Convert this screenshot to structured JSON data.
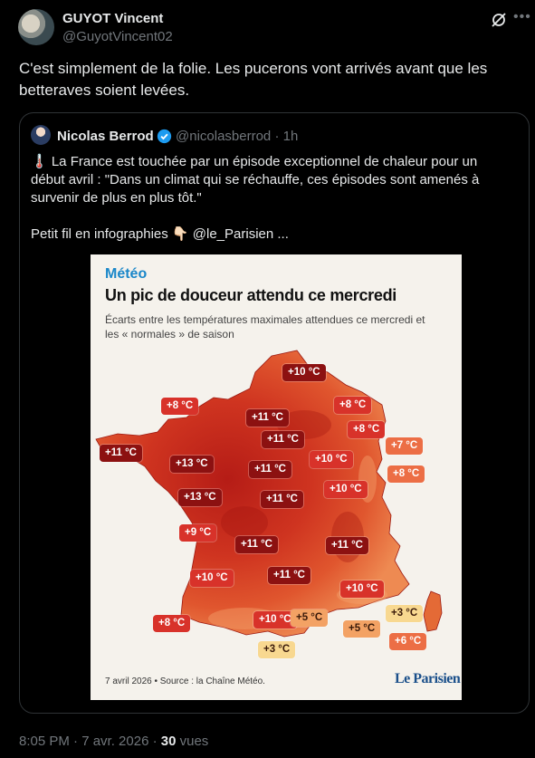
{
  "tweet": {
    "author_name": "GUYOT Vincent",
    "author_handle": "@GuyotVincent02",
    "text": "C'est simplement de la folie. Les pucerons vont arrivés avant que les betteraves soient levées.",
    "timestamp": "8:05 PM · 7 avr. 2026 ·",
    "views_count": "30",
    "views_label": "vues"
  },
  "quote": {
    "author_name": "Nicolas Berrod",
    "author_handle": "@nicolasberrod · 1h",
    "text_line1": "🌡️ La France est touchée par un épisode exceptionnel de chaleur pour un début avril : \"Dans un climat qui se réchauffe, ces épisodes sont amenés à survenir de plus en plus tôt.\"",
    "text_line2": "Petit fil en infographies 👇🏻 @le_Parisien ..."
  },
  "infographic": {
    "kicker": "Météo",
    "title": "Un pic de douceur attendu ce mercredi",
    "subtitle": "Écarts entre les températures maximales attendues ce mercredi et les « normales » de saison",
    "source": "7 avril 2026 • Source : la Chaîne Météo.",
    "logo": "Le Parisien",
    "labels": [
      {
        "text": "+10 °C",
        "tone": "dark"
      },
      {
        "text": "+8 °C",
        "tone": "red"
      },
      {
        "text": "+8 °C",
        "tone": "red"
      },
      {
        "text": "+11 °C",
        "tone": "dark"
      },
      {
        "text": "+8 °C",
        "tone": "red"
      },
      {
        "text": "+11 °C",
        "tone": "dark"
      },
      {
        "text": "+7 °C",
        "tone": "orange"
      },
      {
        "text": "+11 °C",
        "tone": "dark"
      },
      {
        "text": "+10 °C",
        "tone": "red"
      },
      {
        "text": "+13 °C",
        "tone": "dark"
      },
      {
        "text": "+11 °C",
        "tone": "dark"
      },
      {
        "text": "+8 °C",
        "tone": "orange"
      },
      {
        "text": "+13 °C",
        "tone": "dark"
      },
      {
        "text": "+11 °C",
        "tone": "dark"
      },
      {
        "text": "+10 °C",
        "tone": "red"
      },
      {
        "text": "+9 °C",
        "tone": "red"
      },
      {
        "text": "+11 °C",
        "tone": "dark"
      },
      {
        "text": "+11 °C",
        "tone": "dark"
      },
      {
        "text": "+10 °C",
        "tone": "red"
      },
      {
        "text": "+11 °C",
        "tone": "dark"
      },
      {
        "text": "+10 °C",
        "tone": "red"
      },
      {
        "text": "+8 °C",
        "tone": "red"
      },
      {
        "text": "+10 °C",
        "tone": "red"
      },
      {
        "text": "+5 °C",
        "tone": "lightorange"
      },
      {
        "text": "+5 °C",
        "tone": "lightorange"
      },
      {
        "text": "+3 °C",
        "tone": "yellow"
      },
      {
        "text": "+6 °C",
        "tone": "orange"
      },
      {
        "text": "+3 °C",
        "tone": "yellow"
      }
    ],
    "tone_colors": {
      "dark": "#8c1111",
      "red": "#d8322a",
      "orange": "#ec6e45",
      "lightorange": "#f3a264",
      "yellow": "#f8d890"
    }
  },
  "colors": {
    "background": "#000000",
    "text": "#e7e9ea",
    "muted": "#71767b",
    "border": "#2f3336",
    "verified": "#1d9bf0"
  }
}
